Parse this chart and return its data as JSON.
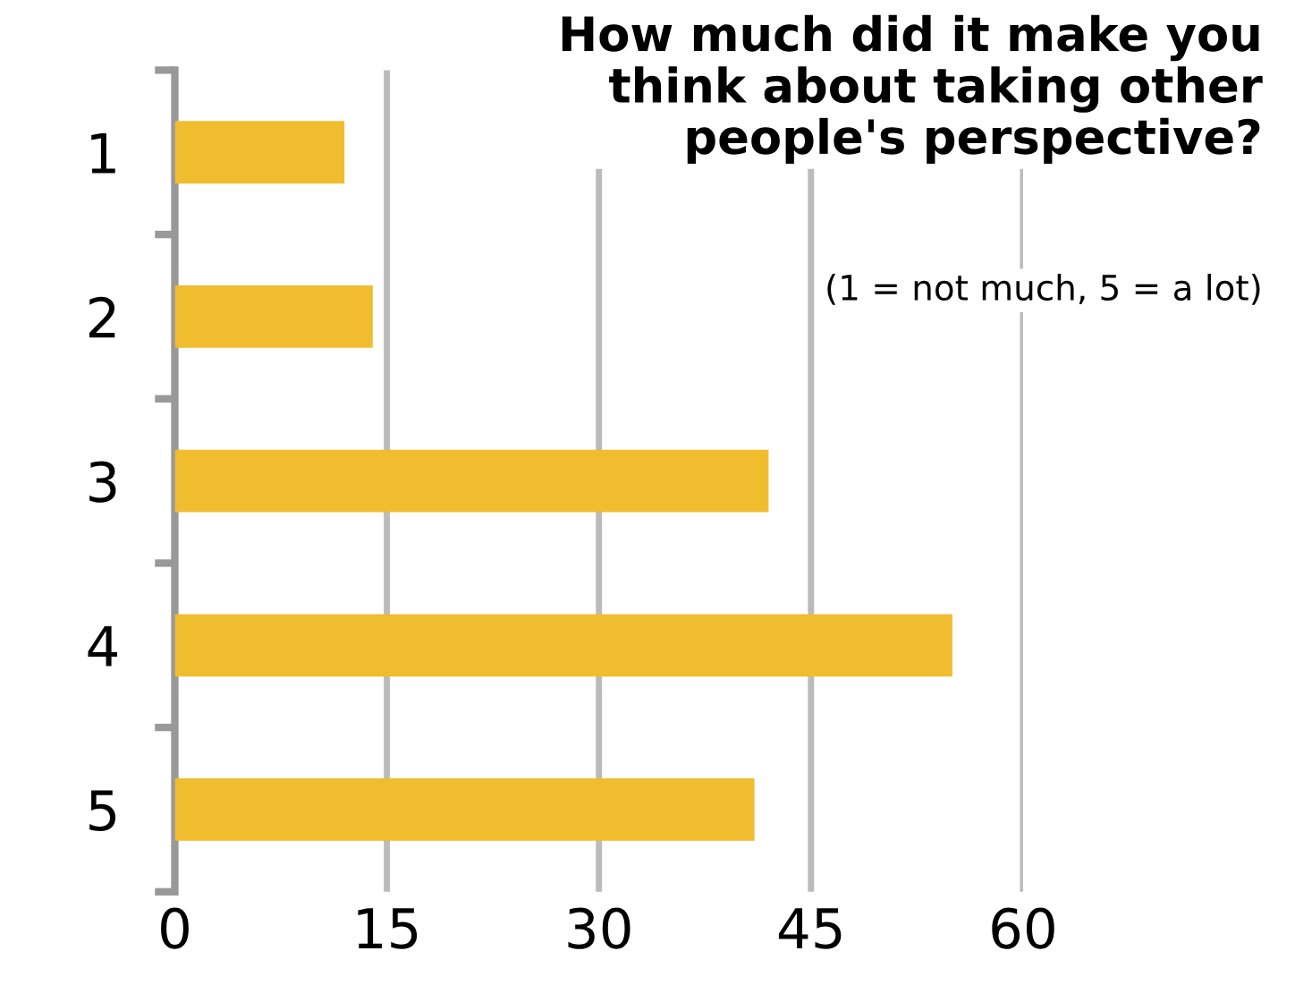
{
  "chart_data": {
    "type": "bar",
    "orientation": "horizontal",
    "title": "How much did it make you\nthink about taking other\npeople's perspective?",
    "subtitle": "(1 = not much, 5 = a lot)",
    "categories": [
      "1",
      "2",
      "3",
      "4",
      "5"
    ],
    "values": [
      12,
      14,
      42,
      55,
      41
    ],
    "color": "#f0bd2f",
    "xlim": [
      0,
      60
    ],
    "xticks": [
      0,
      15,
      30,
      45,
      60
    ],
    "grid": "x"
  }
}
